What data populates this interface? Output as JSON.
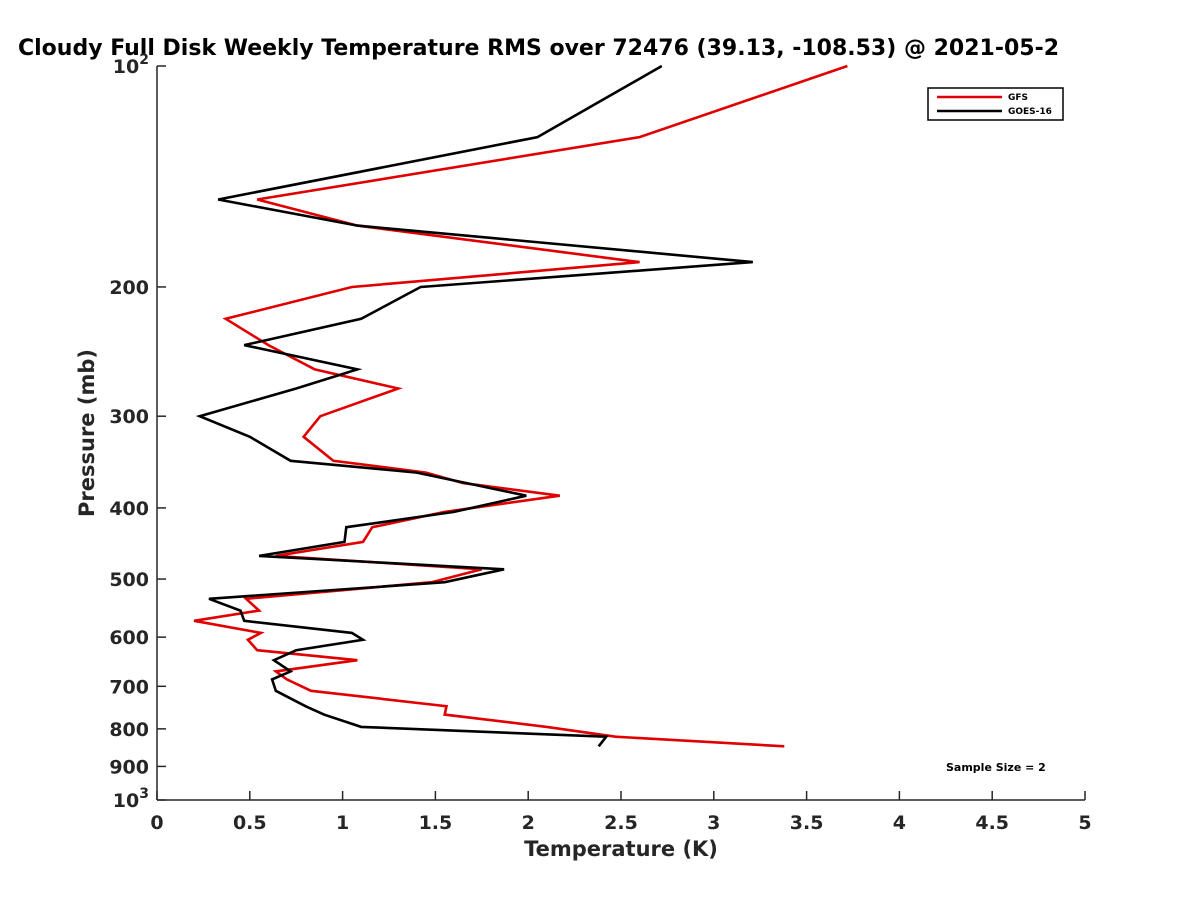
{
  "chart_data": {
    "type": "line",
    "title": "Cloudy Full Disk Weekly Temperature RMS over 72476 (39.13, -108.53) @ 2021-05-2",
    "xlabel": "Temperature (K)",
    "ylabel": "Pressure (mb)",
    "xlim": [
      0,
      5
    ],
    "ylim": [
      100,
      1000
    ],
    "y_scale": "log",
    "y_reversed": true,
    "grid": false,
    "legend_position": "top-right",
    "x_ticks": [
      0,
      0.5,
      1,
      1.5,
      2,
      2.5,
      3,
      3.5,
      4,
      4.5,
      5
    ],
    "x_tick_labels": [
      "0",
      "0.5",
      "1",
      "1.5",
      "2",
      "2.5",
      "3",
      "3.5",
      "4",
      "4.5",
      "5"
    ],
    "y_ticks": [
      100,
      200,
      300,
      400,
      500,
      600,
      700,
      800,
      900,
      1000
    ],
    "y_tick_labels": [
      "10^2",
      "200",
      "300",
      "400",
      "500",
      "600",
      "700",
      "800",
      "900",
      "10^3"
    ],
    "series": [
      {
        "name": "GFS",
        "color": "#e00000",
        "points": [
          [
            3.72,
            100
          ],
          [
            2.6,
            125
          ],
          [
            0.54,
            152
          ],
          [
            1.08,
            165
          ],
          [
            2.6,
            185
          ],
          [
            1.05,
            200
          ],
          [
            0.37,
            221
          ],
          [
            0.6,
            240
          ],
          [
            0.85,
            259
          ],
          [
            1.3,
            275
          ],
          [
            0.88,
            300
          ],
          [
            0.79,
            320
          ],
          [
            0.95,
            345
          ],
          [
            1.45,
            358
          ],
          [
            1.65,
            370
          ],
          [
            2.17,
            385
          ],
          [
            1.55,
            405
          ],
          [
            1.16,
            425
          ],
          [
            1.11,
            445
          ],
          [
            0.64,
            465
          ],
          [
            1.75,
            485
          ],
          [
            1.48,
            505
          ],
          [
            0.48,
            532
          ],
          [
            0.55,
            552
          ],
          [
            0.2,
            570
          ],
          [
            0.56,
            592
          ],
          [
            0.49,
            605
          ],
          [
            0.54,
            625
          ],
          [
            1.08,
            645
          ],
          [
            0.64,
            668
          ],
          [
            0.7,
            685
          ],
          [
            0.83,
            710
          ],
          [
            1.56,
            745
          ],
          [
            1.55,
            765
          ],
          [
            2.1,
            795
          ],
          [
            2.47,
            820
          ],
          [
            3.38,
            845
          ]
        ]
      },
      {
        "name": "GOES-16",
        "color": "#000000",
        "points": [
          [
            2.72,
            100
          ],
          [
            2.05,
            125
          ],
          [
            0.33,
            152
          ],
          [
            1.08,
            165
          ],
          [
            3.21,
            185
          ],
          [
            1.42,
            200
          ],
          [
            1.1,
            221
          ],
          [
            0.47,
            240
          ],
          [
            1.08,
            259
          ],
          [
            0.75,
            275
          ],
          [
            0.23,
            300
          ],
          [
            0.5,
            320
          ],
          [
            0.72,
            345
          ],
          [
            1.4,
            358
          ],
          [
            1.99,
            385
          ],
          [
            1.6,
            405
          ],
          [
            1.02,
            425
          ],
          [
            1.01,
            445
          ],
          [
            0.55,
            465
          ],
          [
            1.87,
            485
          ],
          [
            1.55,
            505
          ],
          [
            0.28,
            532
          ],
          [
            0.45,
            552
          ],
          [
            0.47,
            570
          ],
          [
            1.05,
            592
          ],
          [
            1.11,
            605
          ],
          [
            0.75,
            625
          ],
          [
            0.63,
            645
          ],
          [
            0.72,
            668
          ],
          [
            0.62,
            685
          ],
          [
            0.64,
            710
          ],
          [
            0.8,
            745
          ],
          [
            0.9,
            765
          ],
          [
            1.1,
            795
          ],
          [
            2.42,
            820
          ],
          [
            2.38,
            845
          ]
        ]
      }
    ],
    "annotation": "Sample Size = 2"
  }
}
